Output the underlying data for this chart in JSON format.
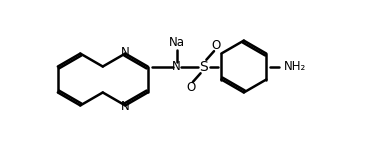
{
  "bg_color": "#ffffff",
  "line_color": "#000000",
  "line_width": 1.8,
  "font_size": 8.5,
  "figsize": [
    3.73,
    1.59
  ],
  "dpi": 100,
  "r": 0.27,
  "xlim": [
    -1.5,
    1.95
  ],
  "ylim": [
    -0.82,
    0.82
  ]
}
